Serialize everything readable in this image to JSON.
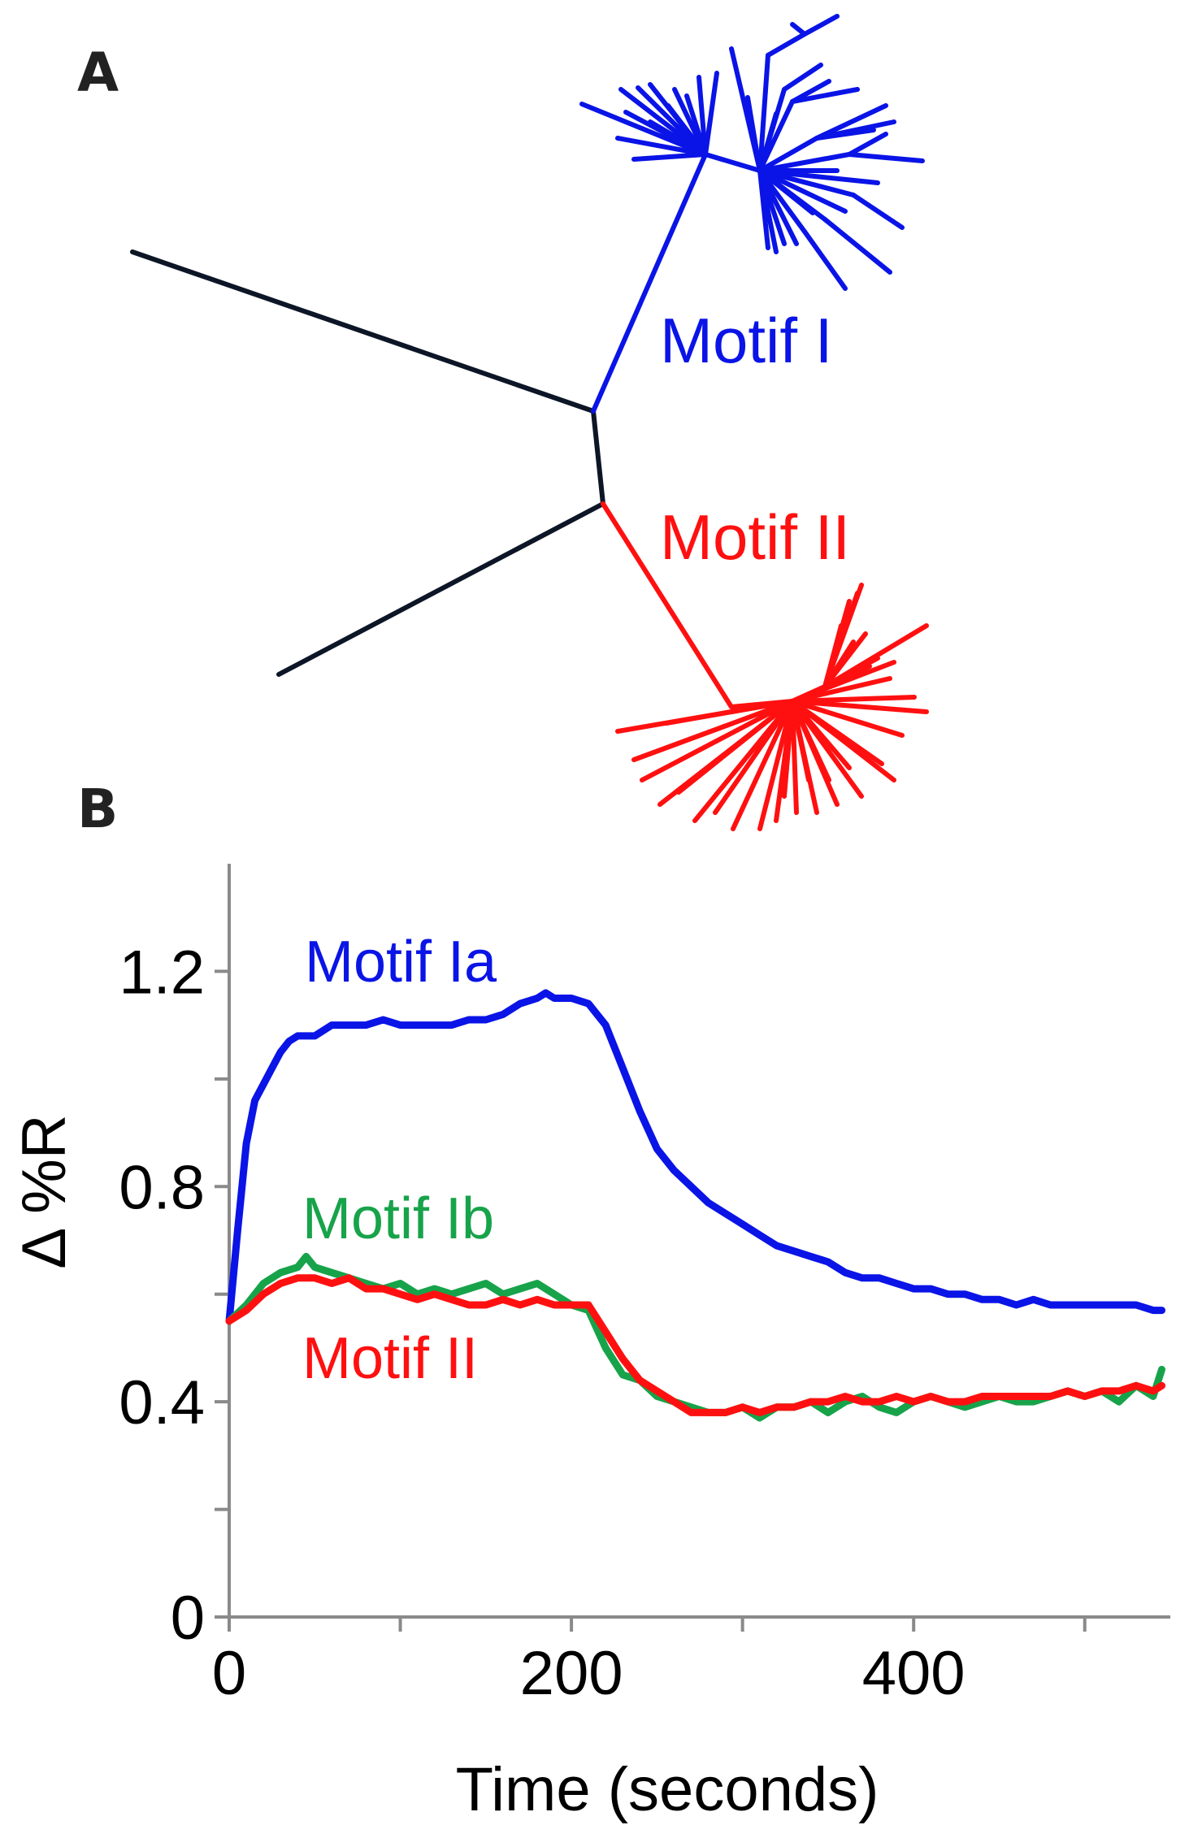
{
  "panel_a": {
    "letter": "A",
    "clades": [
      {
        "name": "Motif I",
        "color": "#0a14e6"
      },
      {
        "name": "Motif II",
        "color": "#ff1010"
      }
    ],
    "trunk_color": "#0d1626"
  },
  "panel_b": {
    "letter": "B"
  },
  "chart_data": {
    "type": "line",
    "title": "",
    "xlabel": "Time (seconds)",
    "ylabel": "Δ %R",
    "xlim": [
      0,
      550
    ],
    "ylim": [
      0,
      1.4
    ],
    "xticks": [
      0,
      200,
      400
    ],
    "xticks_minor": [
      100,
      300,
      500
    ],
    "yticks": [
      0,
      0.4,
      0.8,
      1.2
    ],
    "ytick_labels": [
      "0",
      "0.4",
      "0.8",
      "1.2"
    ],
    "yticks_minor": [
      0.2,
      0.6,
      1.0
    ],
    "grid": false,
    "legend": "inline labels next to curves",
    "series": [
      {
        "name": "Motif Ia",
        "color": "#0a14e6",
        "x": [
          0,
          5,
          10,
          15,
          20,
          25,
          30,
          35,
          40,
          50,
          60,
          70,
          80,
          90,
          100,
          110,
          120,
          130,
          140,
          150,
          160,
          170,
          180,
          185,
          190,
          200,
          210,
          220,
          230,
          240,
          250,
          260,
          270,
          280,
          290,
          300,
          310,
          320,
          330,
          340,
          350,
          360,
          370,
          380,
          390,
          400,
          410,
          420,
          430,
          440,
          450,
          460,
          470,
          480,
          490,
          500,
          510,
          520,
          530,
          540,
          545
        ],
        "y": [
          0.55,
          0.72,
          0.88,
          0.96,
          0.99,
          1.02,
          1.05,
          1.07,
          1.08,
          1.08,
          1.1,
          1.1,
          1.1,
          1.11,
          1.1,
          1.1,
          1.1,
          1.1,
          1.11,
          1.11,
          1.12,
          1.14,
          1.15,
          1.16,
          1.15,
          1.15,
          1.14,
          1.1,
          1.02,
          0.94,
          0.87,
          0.83,
          0.8,
          0.77,
          0.75,
          0.73,
          0.71,
          0.69,
          0.68,
          0.67,
          0.66,
          0.64,
          0.63,
          0.63,
          0.62,
          0.61,
          0.61,
          0.6,
          0.6,
          0.59,
          0.59,
          0.58,
          0.59,
          0.58,
          0.58,
          0.58,
          0.58,
          0.58,
          0.58,
          0.57,
          0.57
        ]
      },
      {
        "name": "Motif Ib",
        "color": "#17a34a",
        "x": [
          0,
          10,
          20,
          30,
          40,
          45,
          50,
          60,
          70,
          80,
          90,
          100,
          110,
          120,
          130,
          140,
          150,
          160,
          170,
          180,
          190,
          200,
          210,
          220,
          230,
          240,
          250,
          260,
          270,
          280,
          290,
          300,
          310,
          320,
          330,
          340,
          350,
          360,
          370,
          380,
          390,
          400,
          410,
          420,
          430,
          440,
          450,
          460,
          470,
          480,
          490,
          500,
          510,
          520,
          530,
          540,
          545
        ],
        "y": [
          0.55,
          0.58,
          0.62,
          0.64,
          0.65,
          0.67,
          0.65,
          0.64,
          0.63,
          0.62,
          0.61,
          0.62,
          0.6,
          0.61,
          0.6,
          0.61,
          0.62,
          0.6,
          0.61,
          0.62,
          0.6,
          0.58,
          0.57,
          0.5,
          0.45,
          0.44,
          0.41,
          0.4,
          0.39,
          0.38,
          0.38,
          0.39,
          0.37,
          0.39,
          0.39,
          0.4,
          0.38,
          0.4,
          0.41,
          0.39,
          0.38,
          0.4,
          0.41,
          0.4,
          0.39,
          0.4,
          0.41,
          0.4,
          0.4,
          0.41,
          0.42,
          0.41,
          0.42,
          0.4,
          0.43,
          0.41,
          0.46
        ]
      },
      {
        "name": "Motif II",
        "color": "#ff1010",
        "x": [
          0,
          10,
          20,
          30,
          40,
          50,
          60,
          70,
          80,
          90,
          100,
          110,
          120,
          130,
          140,
          150,
          160,
          170,
          180,
          190,
          200,
          210,
          220,
          230,
          240,
          250,
          260,
          270,
          280,
          290,
          300,
          310,
          320,
          330,
          340,
          350,
          360,
          370,
          380,
          390,
          400,
          410,
          420,
          430,
          440,
          450,
          460,
          470,
          480,
          490,
          500,
          510,
          520,
          530,
          540,
          545
        ],
        "y": [
          0.55,
          0.57,
          0.6,
          0.62,
          0.63,
          0.63,
          0.62,
          0.63,
          0.61,
          0.61,
          0.6,
          0.59,
          0.6,
          0.59,
          0.58,
          0.58,
          0.59,
          0.58,
          0.59,
          0.58,
          0.58,
          0.58,
          0.53,
          0.48,
          0.44,
          0.42,
          0.4,
          0.38,
          0.38,
          0.38,
          0.39,
          0.38,
          0.39,
          0.39,
          0.4,
          0.4,
          0.41,
          0.4,
          0.4,
          0.41,
          0.4,
          0.41,
          0.4,
          0.4,
          0.41,
          0.41,
          0.41,
          0.41,
          0.41,
          0.42,
          0.41,
          0.42,
          0.42,
          0.43,
          0.42,
          0.43
        ]
      }
    ]
  }
}
